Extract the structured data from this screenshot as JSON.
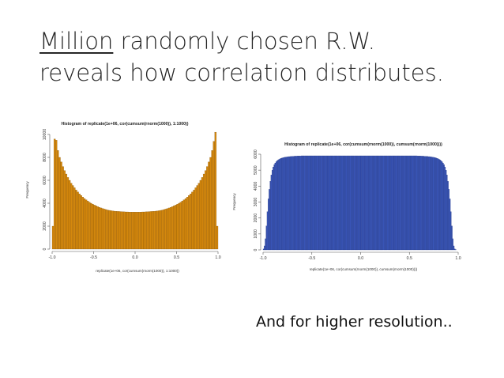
{
  "slide": {
    "title_underlined": "Million",
    "title_rest_line1": " randomly chosen R.W.",
    "title_line2": "reveals how correlation distributes.",
    "caption": "And for higher resolution..",
    "colors": {
      "hist1_fill": "#d4880d",
      "hist2_fill": "#3a56b8"
    }
  },
  "chart_data": [
    {
      "type": "bar",
      "title": "Histogram of replicate(1e+06, cor(cumsum(rnorm(1000)), 1:1000))",
      "xlabel": "replicate(1e+06, cor(cumsum(rnorm(1000)), 1:1000))",
      "ylabel": "Frequency",
      "xlim": [
        -1,
        1
      ],
      "ylim": [
        0,
        10000
      ],
      "xticks": [
        "-1.0",
        "-0.5",
        "0.0",
        "0.5",
        "1.0"
      ],
      "yticks": [
        "0",
        "2000",
        "4000",
        "6000",
        "8000",
        "10000"
      ],
      "bin_edges": {
        "start": -1,
        "width": 0.02
      },
      "values": [
        2000,
        9600,
        9500,
        8600,
        8000,
        7600,
        7200,
        6850,
        6550,
        6250,
        6000,
        5750,
        5550,
        5350,
        5150,
        4980,
        4820,
        4680,
        4540,
        4410,
        4300,
        4190,
        4090,
        4000,
        3920,
        3840,
        3770,
        3700,
        3640,
        3590,
        3540,
        3490,
        3450,
        3410,
        3380,
        3350,
        3330,
        3310,
        3300,
        3290,
        3280,
        3270,
        3260,
        3250,
        3240,
        3240,
        3230,
        3230,
        3230,
        3230,
        3230,
        3230,
        3230,
        3230,
        3240,
        3240,
        3250,
        3260,
        3270,
        3280,
        3290,
        3300,
        3310,
        3330,
        3350,
        3380,
        3410,
        3450,
        3490,
        3540,
        3590,
        3640,
        3700,
        3770,
        3840,
        3920,
        4000,
        4090,
        4190,
        4300,
        4410,
        4540,
        4680,
        4820,
        4980,
        5150,
        5350,
        5550,
        5750,
        6000,
        6250,
        6550,
        6850,
        7200,
        7600,
        8000,
        8600,
        9400,
        10200,
        2000
      ]
    },
    {
      "type": "bar",
      "title": "Histogram of replicate(1e+06, cor(cumsum(rnorm(1000)), cumsum(rnorm(1000))))",
      "xlabel": "replicate(1e+06, cor(cumsum(rnorm(1000)), cumsum(rnorm(1000))))",
      "ylabel": "Frequency",
      "xlim": [
        -1,
        1
      ],
      "ylim": [
        0,
        6000
      ],
      "xticks": [
        "-1.0",
        "-0.5",
        "0.0",
        "0.5",
        "1.0"
      ],
      "yticks": [
        "0",
        "1000",
        "2000",
        "3000",
        "4000",
        "5000",
        "6000"
      ],
      "bin_edges": {
        "start": -1,
        "width": 0.01
      },
      "values": [
        60,
        250,
        700,
        1500,
        2400,
        3200,
        3800,
        4300,
        4700,
        5000,
        5200,
        5350,
        5450,
        5530,
        5590,
        5640,
        5680,
        5710,
        5740,
        5760,
        5780,
        5800,
        5810,
        5820,
        5830,
        5840,
        5850,
        5850,
        5860,
        5860,
        5870,
        5870,
        5880,
        5880,
        5880,
        5890,
        5890,
        5890,
        5890,
        5900,
        5900,
        5900,
        5900,
        5900,
        5900,
        5900,
        5900,
        5900,
        5900,
        5900,
        5900,
        5900,
        5900,
        5900,
        5900,
        5900,
        5900,
        5900,
        5900,
        5900,
        5900,
        5900,
        5900,
        5900,
        5900,
        5900,
        5900,
        5900,
        5900,
        5900,
        5900,
        5900,
        5900,
        5900,
        5900,
        5900,
        5900,
        5900,
        5900,
        5900,
        5900,
        5900,
        5900,
        5900,
        5900,
        5900,
        5900,
        5900,
        5900,
        5900,
        5900,
        5900,
        5900,
        5900,
        5900,
        5900,
        5900,
        5900,
        5900,
        5900,
        5900,
        5900,
        5900,
        5900,
        5900,
        5900,
        5900,
        5900,
        5900,
        5900,
        5900,
        5900,
        5900,
        5900,
        5900,
        5900,
        5900,
        5900,
        5900,
        5900,
        5900,
        5900,
        5900,
        5900,
        5900,
        5900,
        5900,
        5900,
        5900,
        5900,
        5900,
        5900,
        5900,
        5900,
        5900,
        5900,
        5900,
        5900,
        5900,
        5900,
        5900,
        5900,
        5900,
        5900,
        5900,
        5900,
        5900,
        5900,
        5900,
        5900,
        5900,
        5900,
        5900,
        5900,
        5900,
        5900,
        5900,
        5900,
        5890,
        5890,
        5890,
        5890,
        5880,
        5880,
        5880,
        5870,
        5870,
        5860,
        5860,
        5850,
        5850,
        5840,
        5830,
        5820,
        5810,
        5800,
        5780,
        5760,
        5740,
        5710,
        5680,
        5640,
        5590,
        5530,
        5450,
        5350,
        5200,
        5000,
        4700,
        4300,
        3800,
        3200,
        2400,
        1500,
        700,
        250,
        60,
        20
      ]
    }
  ]
}
